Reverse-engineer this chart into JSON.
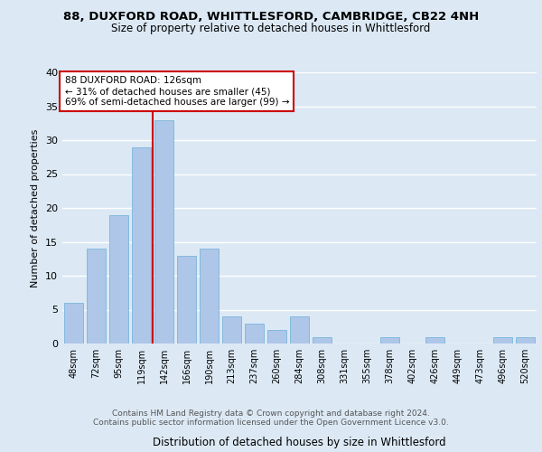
{
  "title1": "88, DUXFORD ROAD, WHITTLESFORD, CAMBRIDGE, CB22 4NH",
  "title2": "Size of property relative to detached houses in Whittlesford",
  "xlabel": "Distribution of detached houses by size in Whittlesford",
  "ylabel": "Number of detached properties",
  "categories": [
    "48sqm",
    "72sqm",
    "95sqm",
    "119sqm",
    "142sqm",
    "166sqm",
    "190sqm",
    "213sqm",
    "237sqm",
    "260sqm",
    "284sqm",
    "308sqm",
    "331sqm",
    "355sqm",
    "378sqm",
    "402sqm",
    "426sqm",
    "449sqm",
    "473sqm",
    "496sqm",
    "520sqm"
  ],
  "values": [
    6,
    14,
    19,
    29,
    33,
    13,
    14,
    4,
    3,
    2,
    4,
    1,
    0,
    0,
    1,
    0,
    1,
    0,
    0,
    1,
    1
  ],
  "bar_color": "#aec6e8",
  "bar_edge_color": "#6aaed6",
  "vline_x": 3.5,
  "annotation_text": "88 DUXFORD ROAD: 126sqm\n← 31% of detached houses are smaller (45)\n69% of semi-detached houses are larger (99) →",
  "annotation_box_color": "#ffffff",
  "annotation_box_edge_color": "#cc0000",
  "vline_color": "#cc0000",
  "ylim": [
    0,
    40
  ],
  "yticks": [
    0,
    5,
    10,
    15,
    20,
    25,
    30,
    35,
    40
  ],
  "footer1": "Contains HM Land Registry data © Crown copyright and database right 2024.",
  "footer2": "Contains public sector information licensed under the Open Government Licence v3.0.",
  "bg_color": "#dce9f5",
  "fig_bg_color": "#dce9f5"
}
